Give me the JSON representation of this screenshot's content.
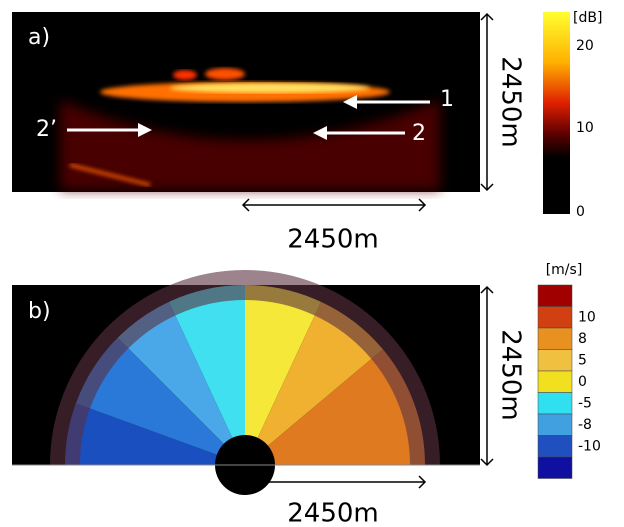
{
  "panels": [
    {
      "label": "a)",
      "annotations": [
        "1",
        "2",
        "2’"
      ],
      "range_vertical": "2450m",
      "range_horizontal": "2450m",
      "colorbar": {
        "unit": "[dB]",
        "ticks": [
          "20",
          "10",
          "0"
        ]
      }
    },
    {
      "label": "b)",
      "range_vertical": "2450m",
      "range_horizontal": "2450m",
      "colorbar": {
        "unit": "[m/s]",
        "ticks": [
          "10",
          "8",
          "5",
          "0",
          "-5",
          "-8",
          "-10"
        ]
      }
    }
  ]
}
